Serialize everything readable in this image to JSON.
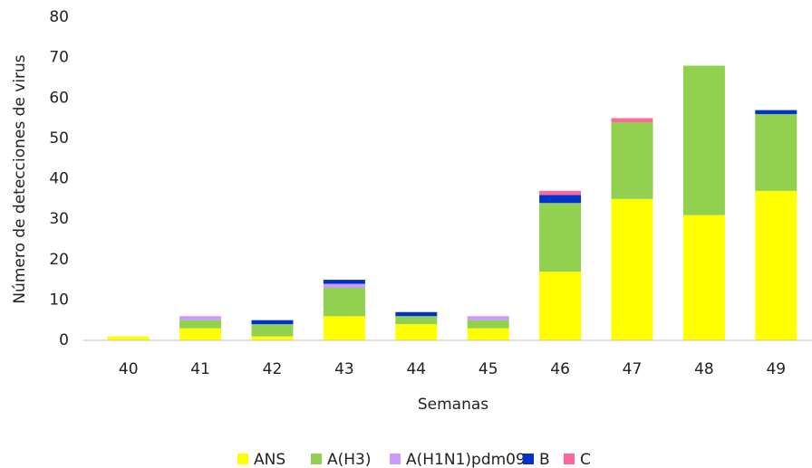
{
  "chart_data": {
    "type": "stacked_bar",
    "categories": [
      "40",
      "41",
      "42",
      "43",
      "44",
      "45",
      "46",
      "47",
      "48",
      "49"
    ],
    "series": [
      {
        "name": "ANS",
        "color": "#ffff00",
        "values": [
          1,
          3,
          1,
          6,
          4,
          3,
          17,
          35,
          31,
          37
        ]
      },
      {
        "name": "A(H3)",
        "color": "#92d050",
        "values": [
          0,
          2,
          3,
          7,
          2,
          2,
          17,
          19,
          37,
          19
        ]
      },
      {
        "name": "A(H1N1)pdm09",
        "color": "#cc99ff",
        "values": [
          0,
          1,
          0,
          1,
          0,
          1,
          0,
          0,
          0,
          0
        ]
      },
      {
        "name": "B",
        "color": "#0033cc",
        "values": [
          0,
          0,
          1,
          1,
          1,
          0,
          2,
          0,
          0,
          1
        ]
      },
      {
        "name": "C",
        "color": "#ff6699",
        "values": [
          0,
          0,
          0,
          0,
          0,
          0,
          1,
          1,
          0,
          0
        ]
      }
    ],
    "x_label": "Semanas",
    "y_label": "Número de detecciones de virus",
    "ylim": [
      0,
      80
    ],
    "yticks": [
      0,
      10,
      20,
      30,
      40,
      50,
      60,
      70,
      80
    ],
    "grid": false,
    "legend": "bottom"
  }
}
